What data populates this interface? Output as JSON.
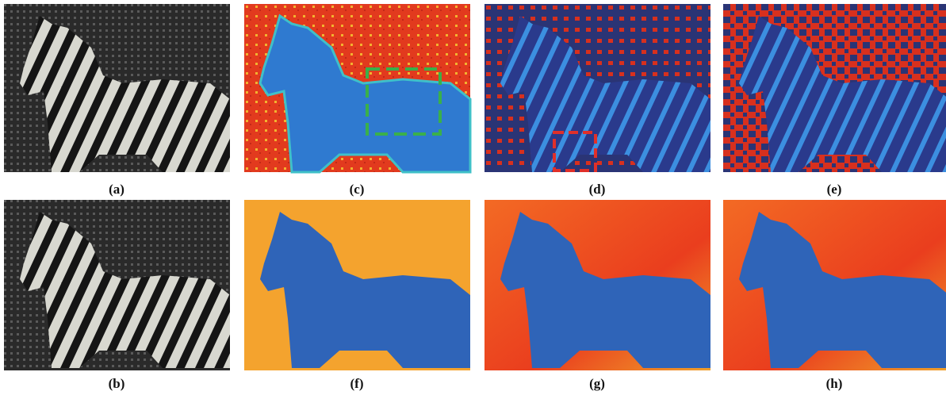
{
  "panels": [
    {
      "label": "(a)"
    },
    {
      "label": "(c)"
    },
    {
      "label": "(d)"
    },
    {
      "label": "(e)"
    },
    {
      "label": "(b)"
    },
    {
      "label": "(f)"
    },
    {
      "label": "(g)"
    },
    {
      "label": "(h)"
    }
  ]
}
